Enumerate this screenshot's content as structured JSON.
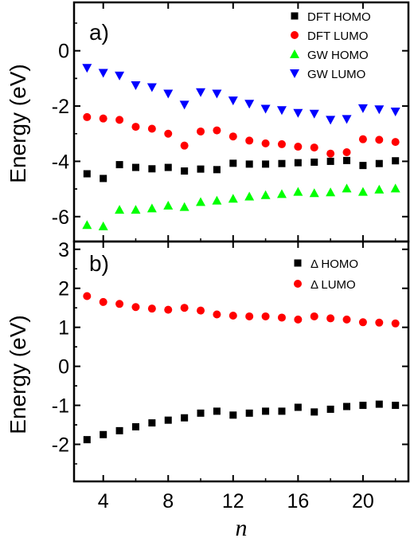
{
  "chart_data": [
    {
      "type": "scatter",
      "panel_label": "a)",
      "ylabel": "Energy (eV)",
      "xlim": [
        2.2,
        22.8
      ],
      "ylim": [
        -6.9,
        1.75
      ],
      "yticks": [
        0,
        -2,
        -4,
        -6
      ],
      "ytick_labels": [
        "0",
        "-2",
        "-4",
        "-6"
      ],
      "legend_position": "top-right",
      "series": [
        {
          "name": "DFT HOMO",
          "marker": "square",
          "color": "#000000",
          "x": [
            3,
            4,
            5,
            6,
            7,
            8,
            9,
            10,
            11,
            12,
            13,
            14,
            15,
            16,
            17,
            18,
            19,
            20,
            21,
            22
          ],
          "y": [
            -4.45,
            -4.62,
            -4.12,
            -4.22,
            -4.27,
            -4.22,
            -4.35,
            -4.28,
            -4.3,
            -4.07,
            -4.1,
            -4.1,
            -4.08,
            -4.05,
            -4.03,
            -4.0,
            -3.97,
            -4.15,
            -4.08,
            -3.98
          ]
        },
        {
          "name": "DFT LUMO",
          "marker": "circle",
          "color": "#ff0000",
          "x": [
            3,
            4,
            5,
            6,
            7,
            8,
            9,
            10,
            11,
            12,
            13,
            14,
            15,
            16,
            17,
            18,
            19,
            20,
            21,
            22
          ],
          "y": [
            -2.4,
            -2.45,
            -2.5,
            -2.75,
            -2.82,
            -3.0,
            -3.43,
            -2.92,
            -2.88,
            -3.1,
            -3.25,
            -3.35,
            -3.38,
            -3.47,
            -3.5,
            -3.72,
            -3.67,
            -3.2,
            -3.22,
            -3.3
          ]
        },
        {
          "name": "GW HOMO",
          "marker": "triangle-up",
          "color": "#00ff00",
          "x": [
            3,
            4,
            5,
            6,
            7,
            8,
            9,
            10,
            11,
            12,
            13,
            14,
            15,
            16,
            17,
            18,
            19,
            20,
            21,
            22
          ],
          "y": [
            -6.3,
            -6.35,
            -5.75,
            -5.75,
            -5.7,
            -5.6,
            -5.65,
            -5.47,
            -5.42,
            -5.35,
            -5.27,
            -5.22,
            -5.18,
            -5.1,
            -5.15,
            -5.12,
            -4.98,
            -5.1,
            -5.02,
            -4.98
          ]
        },
        {
          "name": "GW LUMO",
          "marker": "triangle-down",
          "color": "#0000ff",
          "x": [
            3,
            4,
            5,
            6,
            7,
            8,
            9,
            10,
            11,
            12,
            13,
            14,
            15,
            16,
            17,
            18,
            19,
            20,
            21,
            22
          ],
          "y": [
            -0.62,
            -0.8,
            -0.9,
            -1.25,
            -1.32,
            -1.55,
            -1.95,
            -1.5,
            -1.55,
            -1.8,
            -1.92,
            -2.1,
            -2.15,
            -2.25,
            -2.28,
            -2.5,
            -2.47,
            -2.08,
            -2.12,
            -2.2
          ]
        }
      ]
    },
    {
      "type": "scatter",
      "panel_label": "b)",
      "ylabel": "Energy (eV)",
      "xlabel": "n",
      "xlim": [
        2.2,
        22.8
      ],
      "ylim": [
        -2.95,
        3.2
      ],
      "xticks": [
        4,
        8,
        12,
        16,
        20
      ],
      "xtick_labels": [
        "4",
        "8",
        "12",
        "16",
        "20"
      ],
      "yticks": [
        3,
        2,
        1,
        0,
        -1,
        -2
      ],
      "ytick_labels": [
        "3",
        "2",
        "1",
        "0",
        "-1",
        "-2"
      ],
      "legend_position": "top-right",
      "series": [
        {
          "name": "Δ HOMO",
          "marker": "square",
          "color": "#000000",
          "x": [
            3,
            4,
            5,
            6,
            7,
            8,
            9,
            10,
            11,
            12,
            13,
            14,
            15,
            16,
            17,
            18,
            19,
            20,
            21,
            22
          ],
          "y": [
            -1.88,
            -1.75,
            -1.65,
            -1.55,
            -1.45,
            -1.38,
            -1.32,
            -1.2,
            -1.15,
            -1.25,
            -1.2,
            -1.15,
            -1.15,
            -1.05,
            -1.17,
            -1.1,
            -1.03,
            -1.0,
            -0.97,
            -1.0
          ]
        },
        {
          "name": "Δ LUMO",
          "marker": "circle",
          "color": "#ff0000",
          "x": [
            3,
            4,
            5,
            6,
            7,
            8,
            9,
            10,
            11,
            12,
            13,
            14,
            15,
            16,
            17,
            18,
            19,
            20,
            21,
            22
          ],
          "y": [
            1.8,
            1.65,
            1.6,
            1.52,
            1.48,
            1.45,
            1.5,
            1.43,
            1.33,
            1.3,
            1.28,
            1.28,
            1.25,
            1.2,
            1.28,
            1.23,
            1.2,
            1.13,
            1.12,
            1.1
          ]
        }
      ]
    }
  ]
}
